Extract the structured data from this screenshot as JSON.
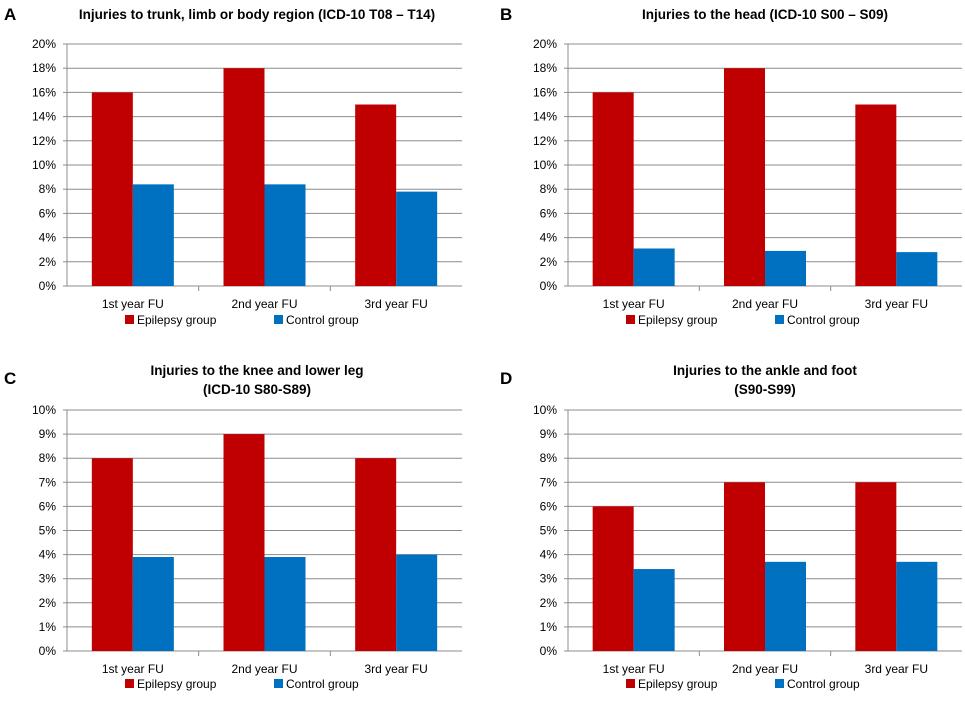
{
  "colors": {
    "epilepsy": "#c00000",
    "control": "#0070c0",
    "grid": "#8c8c8c",
    "axis": "#8c8c8c"
  },
  "chart_data": [
    {
      "type": "bar",
      "panel_letter": "A",
      "title_lines": [
        "Injuries to trunk, limb or body region (ICD-10 T08 – T14)"
      ],
      "categories": [
        "1st year FU",
        "2nd year FU",
        "3rd year FU"
      ],
      "series": [
        {
          "name": "Epilepsy group",
          "values": [
            16,
            18,
            15
          ]
        },
        {
          "name": "Control group",
          "values": [
            8.4,
            8.4,
            7.8
          ]
        }
      ],
      "ylim": [
        0,
        20
      ],
      "ytick_step": 2,
      "ytick_labels": [
        "0%",
        "2%",
        "4%",
        "6%",
        "8%",
        "10%",
        "12%",
        "14%",
        "16%",
        "18%",
        "20%"
      ],
      "legend_position": "bottom",
      "grid": true
    },
    {
      "type": "bar",
      "panel_letter": "B",
      "title_lines": [
        "Injuries to the head (ICD-10 S00 – S09)"
      ],
      "categories": [
        "1st year FU",
        "2nd year FU",
        "3rd year FU"
      ],
      "series": [
        {
          "name": "Epilepsy group",
          "values": [
            16,
            18,
            15
          ]
        },
        {
          "name": "Control group",
          "values": [
            3.1,
            2.9,
            2.8
          ]
        }
      ],
      "ylim": [
        0,
        20
      ],
      "ytick_step": 2,
      "ytick_labels": [
        "0%",
        "2%",
        "4%",
        "6%",
        "8%",
        "10%",
        "12%",
        "14%",
        "16%",
        "18%",
        "20%"
      ],
      "legend_position": "bottom",
      "grid": true
    },
    {
      "type": "bar",
      "panel_letter": "C",
      "title_lines": [
        "Injuries to the knee and lower leg",
        "(ICD-10 S80-S89)"
      ],
      "categories": [
        "1st year FU",
        "2nd year FU",
        "3rd year FU"
      ],
      "series": [
        {
          "name": "Epilepsy group",
          "values": [
            8,
            9,
            8
          ]
        },
        {
          "name": "Control group",
          "values": [
            3.9,
            3.9,
            4.0
          ]
        }
      ],
      "ylim": [
        0,
        10
      ],
      "ytick_step": 1,
      "ytick_labels": [
        "0%",
        "1%",
        "2%",
        "3%",
        "4%",
        "5%",
        "6%",
        "7%",
        "8%",
        "9%",
        "10%"
      ],
      "legend_position": "bottom",
      "grid": true
    },
    {
      "type": "bar",
      "panel_letter": "D",
      "title_lines": [
        "Injuries to the ankle and foot",
        "(S90-S99)"
      ],
      "categories": [
        "1st year FU",
        "2nd year FU",
        "3rd year FU"
      ],
      "series": [
        {
          "name": "Epilepsy group",
          "values": [
            6,
            7,
            7
          ]
        },
        {
          "name": "Control group",
          "values": [
            3.4,
            3.7,
            3.7
          ]
        }
      ],
      "ylim": [
        0,
        10
      ],
      "ytick_step": 1,
      "ytick_labels": [
        "0%",
        "1%",
        "2%",
        "3%",
        "4%",
        "5%",
        "6%",
        "7%",
        "8%",
        "9%",
        "10%"
      ],
      "legend_position": "bottom",
      "grid": true
    }
  ]
}
